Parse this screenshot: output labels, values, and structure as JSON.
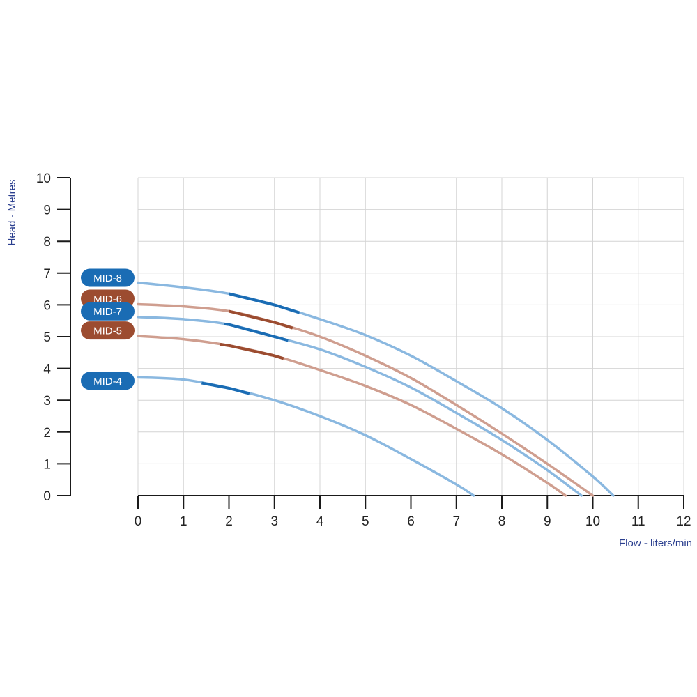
{
  "chart_data": {
    "type": "line",
    "xlabel": "Flow - liters/min",
    "ylabel": "Head - Metres",
    "xlim": [
      0,
      12
    ],
    "ylim": [
      0,
      10
    ],
    "x_ticks": [
      "0",
      "1",
      "2",
      "3",
      "4",
      "5",
      "6",
      "7",
      "8",
      "9",
      "10",
      "11",
      "12"
    ],
    "y_ticks": [
      "0",
      "1",
      "2",
      "3",
      "4",
      "5",
      "6",
      "7",
      "8",
      "9",
      "10"
    ],
    "grid": true,
    "series": [
      {
        "name": "MID-8",
        "color_light": "#8ab8e0",
        "color_dark": "#1a6cb4",
        "label_color": "#1a6cb4",
        "x": [
          0,
          1,
          2,
          3,
          4,
          5,
          6,
          7,
          8,
          9,
          10,
          10.45
        ],
        "y": [
          6.7,
          6.55,
          6.35,
          6.0,
          5.55,
          5.05,
          4.4,
          3.6,
          2.75,
          1.75,
          0.6,
          0.0
        ],
        "highlight": [
          2,
          3.55
        ]
      },
      {
        "name": "MID-6",
        "color_light": "#cf9e8f",
        "color_dark": "#9c4c30",
        "label_color": "#9c4c30",
        "x": [
          0,
          1,
          2,
          3,
          4,
          5,
          6,
          7,
          8,
          9,
          10
        ],
        "y": [
          6.02,
          5.95,
          5.8,
          5.45,
          5.0,
          4.4,
          3.7,
          2.85,
          1.95,
          1.0,
          0.0
        ],
        "highlight": [
          2,
          3.4
        ]
      },
      {
        "name": "MID-7",
        "color_light": "#8ab8e0",
        "color_dark": "#1a6cb4",
        "label_color": "#1a6cb4",
        "x": [
          0,
          1,
          2,
          3,
          4,
          5,
          6,
          7,
          8,
          9,
          9.75
        ],
        "y": [
          5.62,
          5.55,
          5.38,
          5.0,
          4.6,
          4.05,
          3.4,
          2.6,
          1.75,
          0.8,
          0.0
        ],
        "highlight": [
          1.9,
          3.3
        ]
      },
      {
        "name": "MID-5",
        "color_light": "#cf9e8f",
        "color_dark": "#9c4c30",
        "label_color": "#9c4c30",
        "x": [
          0,
          1,
          2,
          3,
          4,
          5,
          6,
          7,
          8,
          9,
          9.4
        ],
        "y": [
          5.02,
          4.92,
          4.72,
          4.4,
          3.95,
          3.45,
          2.85,
          2.1,
          1.3,
          0.4,
          0.0
        ],
        "highlight": [
          1.8,
          3.2
        ]
      },
      {
        "name": "MID-4",
        "color_light": "#8ab8e0",
        "color_dark": "#1a6cb4",
        "label_color": "#1a6cb4",
        "x": [
          0,
          1,
          2,
          3,
          4,
          5,
          6,
          7,
          7.38
        ],
        "y": [
          3.72,
          3.65,
          3.38,
          3.0,
          2.5,
          1.9,
          1.15,
          0.35,
          0.0
        ],
        "highlight": [
          1.4,
          2.45
        ]
      }
    ]
  }
}
